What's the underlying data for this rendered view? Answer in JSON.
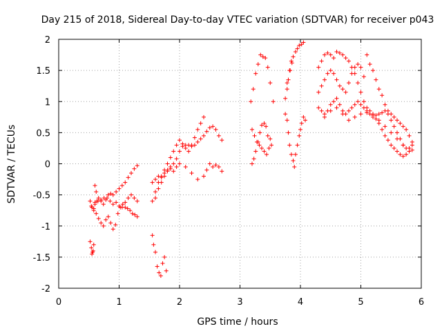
{
  "chart_data": {
    "type": "scatter",
    "title": "Day 215 of 2018, Sidereal Day-to-day VTEC variation (SDTVAR) for receiver p043",
    "xlabel": "GPS time / hours",
    "ylabel": "SDTVAR / TECUs",
    "xlim": [
      0,
      6
    ],
    "ylim": [
      -2,
      2
    ],
    "xticks": [
      "0",
      "1",
      "2",
      "3",
      "4",
      "5",
      "6"
    ],
    "yticks": [
      "-2",
      "-1.5",
      "-1",
      "-0.5",
      "0",
      "0.5",
      "1",
      "1.5",
      "2"
    ],
    "grid": true,
    "marker": "+",
    "color": "#ff0000",
    "series": [
      {
        "name": "SDTVAR",
        "x": [
          0.52,
          0.55,
          0.58,
          0.6,
          0.63,
          0.66,
          0.7,
          0.74,
          0.78,
          0.82,
          0.86,
          0.9,
          0.95,
          1.0,
          1.05,
          1.1,
          1.15,
          1.2,
          1.25,
          1.3,
          0.54,
          0.58,
          0.62,
          0.66,
          0.7,
          0.74,
          0.78,
          0.82,
          0.86,
          0.9,
          0.94,
          0.98,
          1.02,
          1.06,
          1.1,
          1.14,
          1.18,
          1.22,
          1.26,
          1.3,
          0.6,
          0.65,
          0.7,
          0.75,
          0.8,
          0.85,
          0.9,
          0.95,
          1.0,
          1.05,
          1.1,
          1.15,
          1.2,
          1.25,
          1.3,
          0.52,
          0.54,
          0.56,
          0.58,
          0.6,
          0.62,
          0.55,
          0.57,
          1.55,
          1.6,
          1.65,
          1.7,
          1.75,
          1.8,
          1.85,
          1.9,
          1.95,
          2.0,
          2.05,
          2.1,
          2.15,
          2.2,
          2.25,
          2.3,
          2.35,
          2.4,
          1.6,
          1.65,
          1.7,
          1.75,
          1.8,
          1.85,
          1.9,
          1.95,
          2.0,
          2.05,
          2.1,
          2.15,
          2.2,
          2.25,
          2.3,
          2.35,
          2.4,
          2.45,
          2.5,
          2.55,
          2.6,
          2.65,
          2.7,
          1.55,
          1.6,
          1.65,
          1.7,
          1.75,
          1.8,
          1.85,
          1.9,
          1.95,
          2.0,
          2.1,
          2.2,
          2.3,
          2.4,
          2.45,
          2.5,
          2.55,
          2.6,
          2.65,
          2.7,
          1.55,
          1.57,
          1.6,
          1.63,
          1.66,
          1.69,
          1.72,
          1.75,
          1.78,
          3.2,
          3.23,
          3.26,
          3.3,
          3.33,
          3.36,
          3.4,
          3.43,
          3.46,
          3.5,
          3.2,
          3.24,
          3.28,
          3.32,
          3.36,
          3.4,
          3.44,
          3.48,
          3.52,
          3.18,
          3.22,
          3.26,
          3.3,
          3.34,
          3.38,
          3.42,
          3.46,
          3.5,
          3.55,
          3.75,
          3.78,
          3.8,
          3.82,
          3.85,
          3.88,
          3.9,
          3.92,
          3.95,
          3.98,
          4.0,
          4.02,
          4.05,
          4.08,
          3.78,
          3.82,
          3.85,
          3.88,
          3.92,
          3.95,
          3.98,
          4.02,
          4.05,
          3.75,
          3.78,
          3.8,
          3.83,
          3.86,
          4.3,
          4.35,
          4.4,
          4.45,
          4.5,
          4.55,
          4.6,
          4.65,
          4.7,
          4.75,
          4.8,
          4.85,
          4.9,
          4.95,
          5.0,
          5.05,
          5.1,
          5.15,
          5.2,
          5.25,
          5.3,
          5.35,
          5.4,
          5.45,
          5.5,
          5.55,
          5.6,
          5.65,
          5.7,
          5.75,
          5.8,
          5.85,
          4.3,
          4.35,
          4.4,
          4.45,
          4.5,
          4.55,
          4.6,
          4.65,
          4.7,
          4.75,
          4.8,
          4.85,
          4.9,
          4.95,
          5.0,
          5.05,
          5.1,
          5.15,
          5.2,
          5.25,
          5.3,
          5.35,
          5.4,
          5.45,
          5.5,
          5.55,
          5.6,
          5.65,
          5.7,
          5.75,
          5.8,
          5.85,
          4.3,
          4.35,
          4.4,
          4.45,
          4.5,
          4.55,
          4.6,
          4.65,
          4.7,
          4.75,
          4.8,
          4.85,
          4.9,
          4.95,
          5.0,
          5.05,
          5.1,
          5.15,
          5.2,
          5.25,
          5.3,
          5.35,
          5.4,
          5.45,
          5.5,
          5.55,
          5.6,
          5.65,
          5.7,
          5.75,
          5.8,
          5.85,
          4.4,
          4.5,
          4.6,
          4.7,
          4.8,
          4.9,
          5.0,
          5.1,
          5.2,
          5.3,
          5.4,
          5.5,
          5.6,
          5.7,
          5.8
        ],
        "y": [
          -0.6,
          -0.7,
          -0.75,
          -0.65,
          -0.6,
          -0.55,
          -0.6,
          -0.65,
          -0.58,
          -0.5,
          -0.48,
          -0.5,
          -0.45,
          -0.4,
          -0.35,
          -0.3,
          -0.22,
          -0.15,
          -0.08,
          -0.03,
          -0.68,
          -0.72,
          -0.8,
          -0.88,
          -0.95,
          -1.0,
          -0.9,
          -0.85,
          -0.95,
          -1.05,
          -0.98,
          -0.8,
          -0.7,
          -0.65,
          -0.7,
          -0.72,
          -0.75,
          -0.8,
          -0.82,
          -0.85,
          -0.62,
          -0.6,
          -0.58,
          -0.55,
          -0.55,
          -0.6,
          -0.65,
          -0.62,
          -0.68,
          -0.7,
          -0.62,
          -0.55,
          -0.5,
          -0.55,
          -0.6,
          -1.25,
          -1.35,
          -1.42,
          -1.3,
          -0.35,
          -0.45,
          -1.45,
          -1.4,
          -0.6,
          -0.45,
          -0.3,
          -0.2,
          -0.1,
          0.0,
          0.1,
          0.2,
          0.3,
          0.38,
          0.32,
          0.25,
          0.2,
          0.3,
          0.42,
          0.55,
          0.65,
          0.75,
          -0.55,
          -0.4,
          -0.3,
          -0.2,
          -0.12,
          -0.05,
          0.0,
          0.08,
          0.2,
          0.28,
          0.3,
          0.3,
          0.28,
          0.3,
          0.35,
          0.4,
          0.45,
          0.52,
          0.58,
          0.6,
          0.55,
          0.45,
          0.38,
          -0.3,
          -0.25,
          -0.2,
          -0.22,
          -0.15,
          -0.1,
          -0.08,
          -0.12,
          -0.05,
          0.0,
          -0.05,
          -0.15,
          -0.25,
          -0.2,
          -0.1,
          0.0,
          -0.05,
          -0.02,
          -0.05,
          -0.12,
          -1.15,
          -1.3,
          -1.42,
          -1.65,
          -1.75,
          -1.8,
          -1.6,
          -1.5,
          -1.72,
          0.0,
          0.08,
          0.2,
          0.35,
          0.5,
          0.62,
          0.65,
          0.6,
          0.45,
          0.4,
          0.55,
          0.45,
          0.35,
          0.3,
          0.25,
          0.2,
          0.15,
          0.25,
          0.3,
          1.0,
          1.2,
          1.45,
          1.6,
          1.75,
          1.72,
          1.7,
          1.55,
          1.3,
          1.0,
          0.8,
          0.7,
          0.5,
          0.3,
          0.15,
          0.05,
          -0.05,
          0.15,
          0.3,
          0.45,
          0.55,
          0.65,
          0.75,
          0.7,
          1.3,
          1.5,
          1.65,
          1.72,
          1.8,
          1.85,
          1.9,
          1.92,
          1.95,
          1.05,
          1.2,
          1.35,
          1.5,
          1.62,
          1.55,
          1.65,
          1.75,
          1.78,
          1.75,
          1.7,
          1.8,
          1.78,
          1.75,
          1.7,
          1.65,
          1.55,
          1.45,
          1.3,
          1.15,
          1.0,
          0.9,
          0.85,
          0.8,
          0.78,
          0.8,
          0.82,
          0.85,
          0.8,
          0.7,
          0.6,
          0.5,
          0.4,
          0.3,
          0.25,
          0.2,
          0.22,
          1.15,
          1.25,
          1.35,
          1.45,
          1.5,
          1.45,
          1.35,
          1.25,
          1.2,
          1.15,
          1.3,
          1.45,
          1.55,
          1.6,
          1.55,
          1.4,
          1.75,
          1.6,
          1.5,
          1.35,
          1.2,
          1.1,
          0.95,
          0.85,
          0.8,
          0.75,
          0.7,
          0.65,
          0.6,
          0.55,
          0.45,
          0.35,
          0.9,
          0.85,
          0.8,
          0.85,
          0.95,
          1.0,
          1.05,
          0.95,
          0.85,
          0.8,
          0.85,
          0.9,
          0.95,
          1.0,
          0.95,
          0.9,
          0.85,
          0.8,
          0.75,
          0.72,
          0.65,
          0.55,
          0.45,
          0.38,
          0.3,
          0.25,
          0.2,
          0.15,
          0.12,
          0.15,
          0.25,
          0.3,
          0.75,
          0.85,
          0.9,
          0.8,
          0.7,
          0.75,
          0.8,
          0.82,
          0.78,
          0.7,
          0.6,
          0.5,
          0.4,
          0.3,
          0.25
        ]
      }
    ]
  }
}
